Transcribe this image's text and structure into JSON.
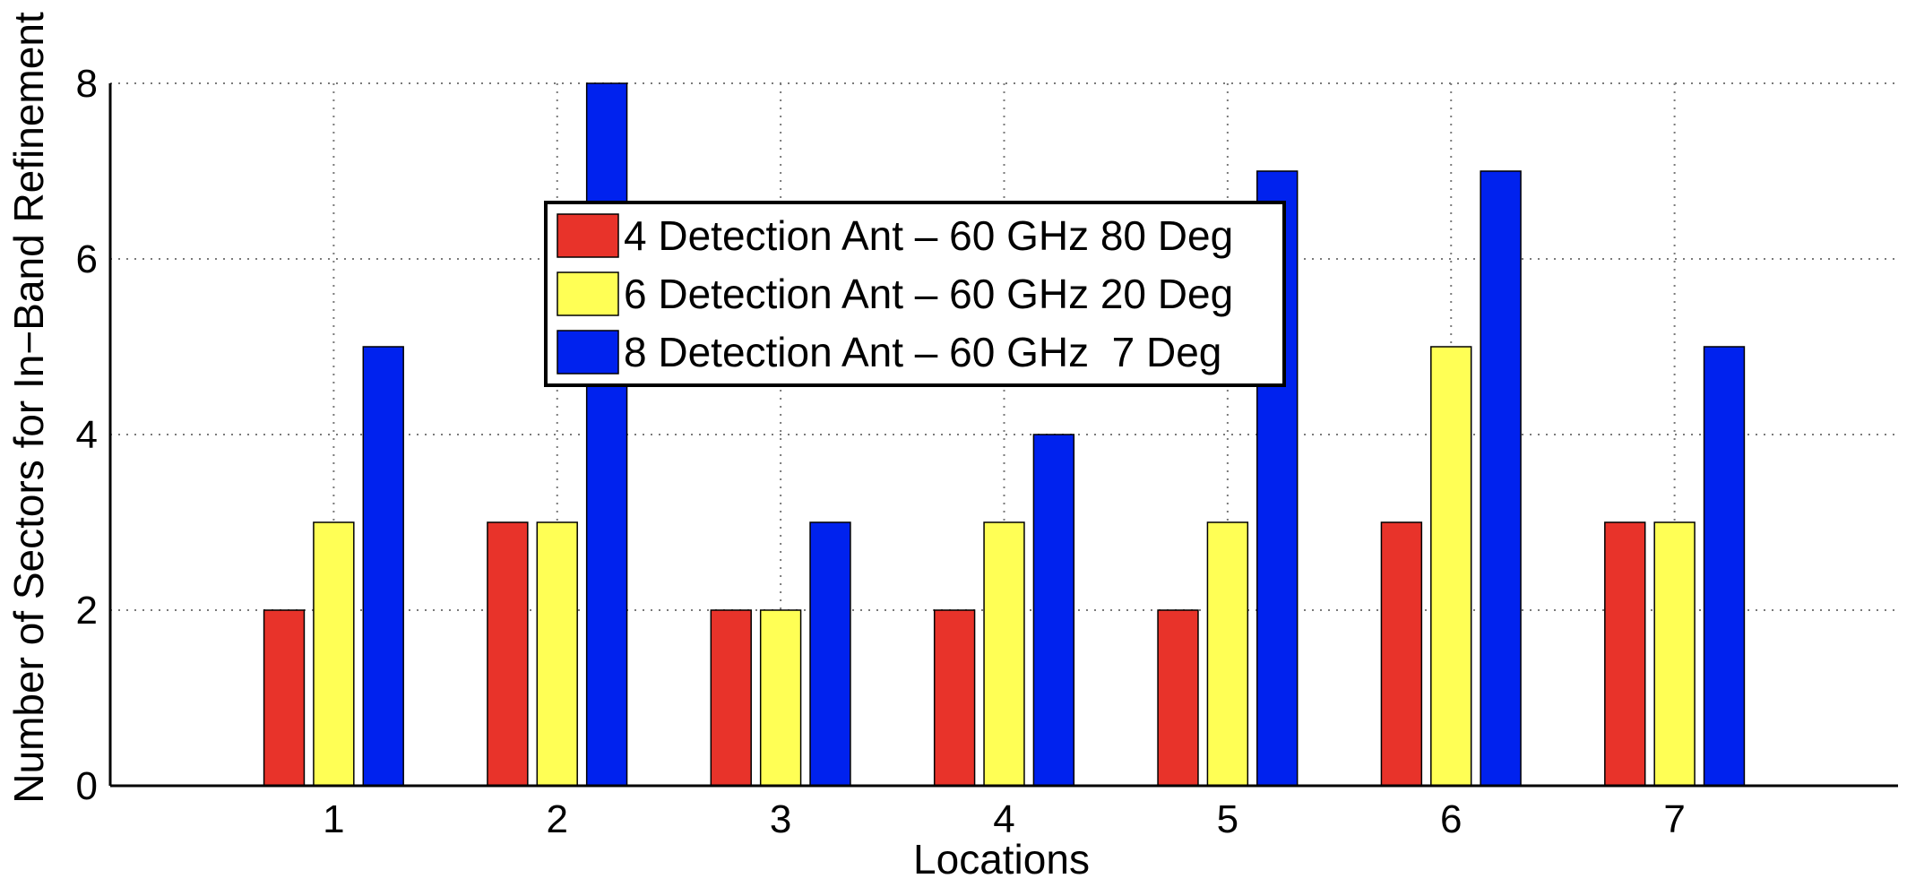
{
  "chart_data": {
    "type": "bar",
    "title": "",
    "xlabel": "Locations",
    "ylabel": "Number of Sectors for In−Band Refinement",
    "categories": [
      "1",
      "2",
      "3",
      "4",
      "5",
      "6",
      "7"
    ],
    "xlim": [
      0,
      8
    ],
    "ylim": [
      0,
      8
    ],
    "yticks": [
      "0",
      "2",
      "4",
      "6",
      "8"
    ],
    "grid": true,
    "legend_position": "top-center",
    "series": [
      {
        "name": "4 Detection Ant – 60 GHz 80 Deg",
        "color": "#e8332a",
        "values": [
          2,
          3,
          2,
          2,
          2,
          3,
          3
        ]
      },
      {
        "name": "6 Detection Ant – 60 GHz 20 Deg",
        "color": "#ffff55",
        "values": [
          3,
          3,
          2,
          3,
          3,
          5,
          3
        ]
      },
      {
        "name": "8 Detection Ant – 60 GHz  7 Deg",
        "color": "#0022ee",
        "values": [
          5,
          8,
          3,
          4,
          7,
          7,
          5
        ]
      }
    ]
  }
}
